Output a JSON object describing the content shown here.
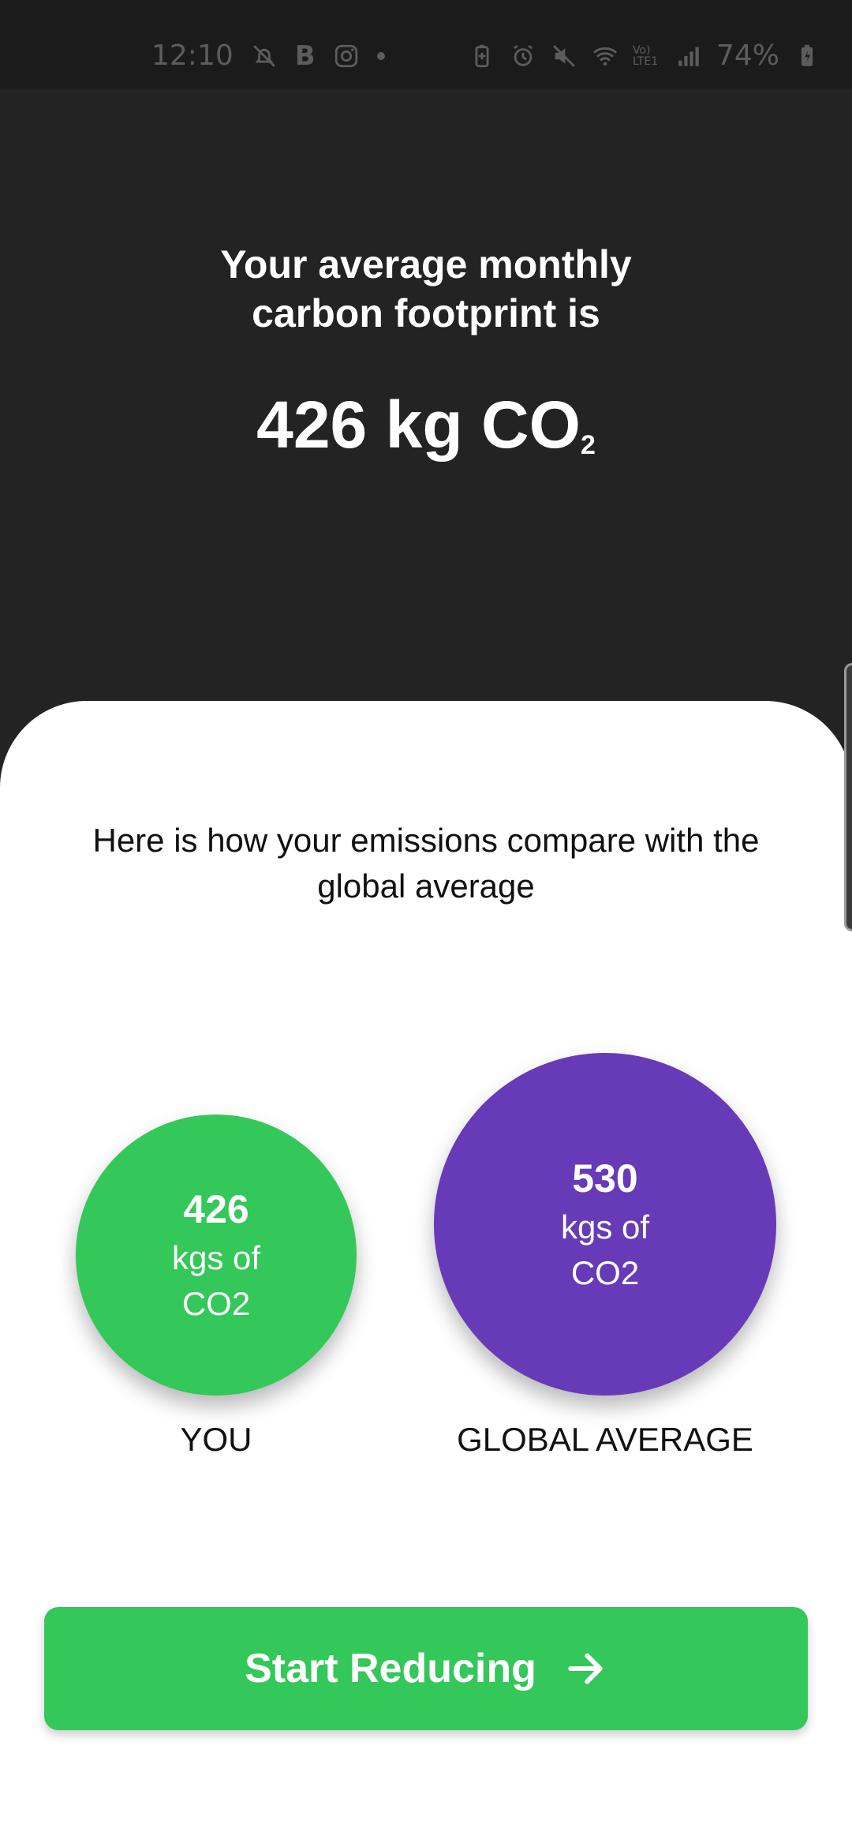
{
  "status_bar": {
    "time": "12:10",
    "battery": "74%",
    "left_icons": [
      "no-notification-icon",
      "b-app-icon",
      "instagram-icon",
      "dot-icon"
    ],
    "right_icons": [
      "battery-saver-icon",
      "alarm-icon",
      "mute-icon",
      "wifi-icon",
      "volte-icon",
      "signal-icon",
      "charging-battery-icon"
    ],
    "b_letter": "B",
    "volte_text": "Vo) LTE1"
  },
  "hero": {
    "title": "Your average monthly\ncarbon footprint is",
    "value": "426 kg CO",
    "value_subscript": "2"
  },
  "comparison": {
    "text": "Here is how your emissions compare with the global average",
    "you": {
      "value": "426",
      "unit_line1": "kgs of",
      "unit_line2": "CO2",
      "label": "YOU",
      "color": "#34C759"
    },
    "global": {
      "value": "530",
      "unit_line1": "kgs of",
      "unit_line2": "CO2",
      "label": "GLOBAL AVERAGE",
      "color": "#673AB7"
    }
  },
  "cta": {
    "label": "Start Reducing",
    "icon": "arrow-right-icon",
    "color": "#34C759"
  },
  "theme": {
    "background": "#232323",
    "sheet": "#FFFFFF"
  }
}
